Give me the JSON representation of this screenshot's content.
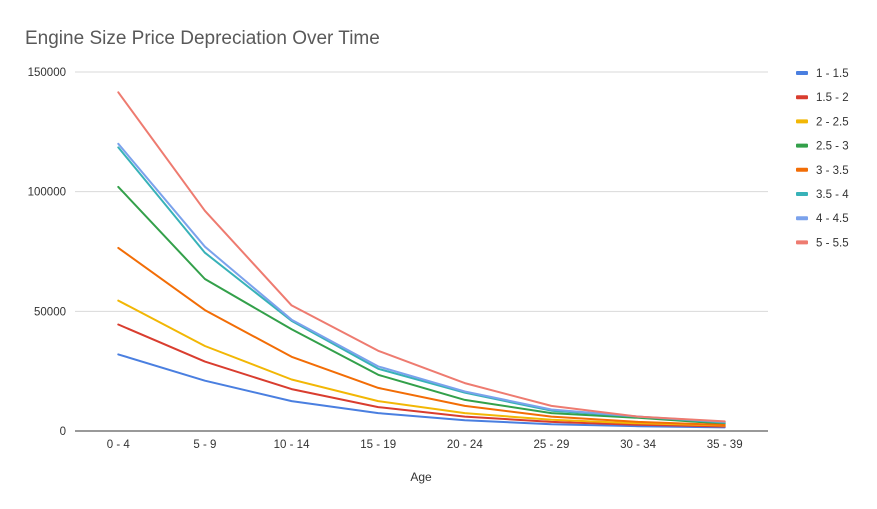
{
  "chart_data": {
    "type": "line",
    "title": "Engine Size Price Depreciation Over Time",
    "xlabel": "Age",
    "ylabel": "",
    "categories": [
      "0 - 4",
      "5 - 9",
      "10 - 14",
      "15 - 19",
      "20 - 24",
      "25 - 29",
      "30 - 34",
      "35 - 39"
    ],
    "ylim": [
      0,
      150000
    ],
    "yticks": [
      0,
      50000,
      100000,
      150000
    ],
    "grid": true,
    "legend_position": "right",
    "series": [
      {
        "name": "1 - 1.5",
        "color": "#4a7fe0",
        "values": [
          32000,
          21000,
          12500,
          7500,
          4500,
          2800,
          2000,
          1500
        ]
      },
      {
        "name": "1.5 - 2",
        "color": "#d93d2f",
        "values": [
          44500,
          29000,
          17500,
          10000,
          6000,
          3800,
          2600,
          1900
        ]
      },
      {
        "name": "2 - 2.5",
        "color": "#f2b705",
        "values": [
          54500,
          35500,
          21500,
          12500,
          7500,
          4700,
          3200,
          2300
        ]
      },
      {
        "name": "2.5 - 3",
        "color": "#33a04a",
        "values": [
          102000,
          63500,
          42500,
          23500,
          13000,
          7500,
          5500,
          3000
        ]
      },
      {
        "name": "3 - 3.5",
        "color": "#f26d06",
        "values": [
          76500,
          50500,
          31000,
          18000,
          10500,
          6000,
          3800,
          2500
        ]
      },
      {
        "name": "3.5 - 4",
        "color": "#38b2b8",
        "values": [
          118500,
          74500,
          46000,
          26000,
          16000,
          8500,
          6000,
          3500
        ]
      },
      {
        "name": "4 - 4.5",
        "color": "#7ba2ec",
        "values": [
          120000,
          77000,
          46500,
          27000,
          16500,
          9000,
          6000,
          3800
        ]
      },
      {
        "name": "5 - 5.5",
        "color": "#ee7b70",
        "values": [
          141500,
          92000,
          52500,
          33500,
          20000,
          10500,
          6000,
          4000
        ]
      }
    ]
  }
}
